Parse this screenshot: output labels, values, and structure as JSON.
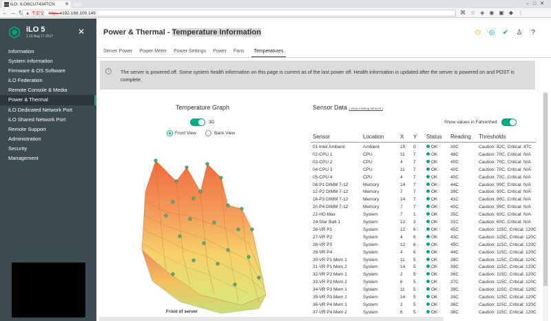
{
  "browser": {
    "tab_title": "iLO: ILO6CU74347CN",
    "tab_icon": "iLO",
    "url_warning": "不安全",
    "url_scheme": "https://",
    "url_host": "192.168.100.149"
  },
  "sidebar": {
    "product": "iLO 5",
    "firmware": "1.15 Aug 17 2017",
    "items": [
      {
        "label": "Information"
      },
      {
        "label": "System Information"
      },
      {
        "label": "Firmware & OS Software"
      },
      {
        "label": "iLO Federation"
      },
      {
        "label": "Remote Console & Media"
      },
      {
        "label": "Power & Thermal"
      },
      {
        "label": "iLO Dedicated Network Port"
      },
      {
        "label": "iLO Shared Network Port"
      },
      {
        "label": "Remote Support"
      },
      {
        "label": "Administration"
      },
      {
        "label": "Security"
      },
      {
        "label": "Management"
      }
    ],
    "active_index": 5
  },
  "header": {
    "section": "Power & Thermal",
    "separator": " - ",
    "page": "Temperature Information"
  },
  "tabs": [
    "Server Power",
    "Power Meter",
    "Power Settings",
    "Power",
    "Fans",
    "Temperatures"
  ],
  "selected_tab": 5,
  "alert": {
    "message": "The server is powered off. Some system health information on this page is current as of the last power off. Health information is updated after the server is powered on and POST is complete."
  },
  "graph": {
    "title": "Temperature Graph",
    "toggle_3d_label": "3D",
    "front_view": "Front View",
    "back_view": "Back View",
    "front_label": "Front of server"
  },
  "sensor_data": {
    "title": "Sensor Data",
    "show_missing": "( show missing sensors )",
    "fahrenheit_label": "Show values in Fahrenheit",
    "columns": {
      "sensor": "Sensor",
      "location": "Location",
      "x": "X",
      "y": "Y",
      "status": "Status",
      "reading": "Reading",
      "thresholds": "Thresholds"
    },
    "rows": [
      {
        "sensor": "01-Inlet Ambient",
        "location": "Ambient",
        "x": "15",
        "y": "0",
        "status": "OK",
        "reading": "30C",
        "thresholds": "Caution: 42C, Critical: 47C"
      },
      {
        "sensor": "02-CPU 1",
        "location": "CPU",
        "x": "11",
        "y": "7",
        "status": "OK",
        "reading": "48C",
        "thresholds": "Caution: 70C, Critical: N/A"
      },
      {
        "sensor": "03-CPU 2",
        "location": "CPU",
        "x": "4",
        "y": "7",
        "status": "OK",
        "reading": "40C",
        "thresholds": "Caution: 70C, Critical: N/A"
      },
      {
        "sensor": "04-CPU 3",
        "location": "CPU",
        "x": "11",
        "y": "7",
        "status": "OK",
        "reading": "40C",
        "thresholds": "Caution: 70C, Critical: N/A"
      },
      {
        "sensor": "05-CPU 4",
        "location": "CPU",
        "x": "4",
        "y": "7",
        "status": "OK",
        "reading": "40C",
        "thresholds": "Caution: 70C, Critical: N/A"
      },
      {
        "sensor": "08-P1 DIMM 7-12",
        "location": "Memory",
        "x": "14",
        "y": "7",
        "status": "OK",
        "reading": "44C",
        "thresholds": "Caution: 90C, Critical: N/A"
      },
      {
        "sensor": "12-P2 DIMM 7-12",
        "location": "Memory",
        "x": "7",
        "y": "7",
        "status": "OK",
        "reading": "39C",
        "thresholds": "Caution: 90C, Critical: N/A"
      },
      {
        "sensor": "16-P3 DIMM 7-12",
        "location": "Memory",
        "x": "14",
        "y": "7",
        "status": "OK",
        "reading": "41C",
        "thresholds": "Caution: 90C, Critical: N/A"
      },
      {
        "sensor": "20-P4 DIMM 7-12",
        "location": "Memory",
        "x": "7",
        "y": "7",
        "status": "OK",
        "reading": "40C",
        "thresholds": "Caution: 90C, Critical: N/A"
      },
      {
        "sensor": "22-HD Max",
        "location": "System",
        "x": "7",
        "y": "1",
        "status": "OK",
        "reading": "35C",
        "thresholds": "Caution: 60C, Critical: N/A"
      },
      {
        "sensor": "24-Stor Batt 1",
        "location": "System",
        "x": "12",
        "y": "3",
        "status": "OK",
        "reading": "31C",
        "thresholds": "Caution: 60C, Critical: N/A"
      },
      {
        "sensor": "26-VR P1",
        "location": "System",
        "x": "12",
        "y": "6",
        "status": "OK",
        "reading": "45C",
        "thresholds": "Caution: 115C, Critical: 120C"
      },
      {
        "sensor": "27-VR P2",
        "location": "System",
        "x": "4",
        "y": "6",
        "status": "OK",
        "reading": "43C",
        "thresholds": "Caution: 115C, Critical: 120C"
      },
      {
        "sensor": "28-VR P3",
        "location": "System",
        "x": "12",
        "y": "6",
        "status": "OK",
        "reading": "45C",
        "thresholds": "Caution: 115C, Critical: 120C"
      },
      {
        "sensor": "29-VR P4",
        "location": "System",
        "x": "4",
        "y": "6",
        "status": "OK",
        "reading": "44C",
        "thresholds": "Caution: 115C, Critical: 120C"
      },
      {
        "sensor": "30-VR P1 Mem 1",
        "location": "System",
        "x": "11",
        "y": "5",
        "status": "OK",
        "reading": "38C",
        "thresholds": "Caution: 115C, Critical: 120C"
      },
      {
        "sensor": "31-VR P1 Mem 2",
        "location": "System",
        "x": "14",
        "y": "5",
        "status": "OK",
        "reading": "39C",
        "thresholds": "Caution: 115C, Critical: 120C"
      },
      {
        "sensor": "32-VR P2 Mem 1",
        "location": "System",
        "x": "2",
        "y": "5",
        "status": "OK",
        "reading": "36C",
        "thresholds": "Caution: 115C, Critical: 120C"
      },
      {
        "sensor": "33-VR P2 Mem 2",
        "location": "System",
        "x": "6",
        "y": "5",
        "status": "OK",
        "reading": "37C",
        "thresholds": "Caution: 115C, Critical: 120C"
      },
      {
        "sensor": "34-VR P3 Mem 1",
        "location": "System",
        "x": "11",
        "y": "5",
        "status": "OK",
        "reading": "39C",
        "thresholds": "Caution: 115C, Critical: 120C"
      },
      {
        "sensor": "35-VR P3 Mem 2",
        "location": "System",
        "x": "14",
        "y": "5",
        "status": "OK",
        "reading": "39C",
        "thresholds": "Caution: 115C, Critical: 120C"
      },
      {
        "sensor": "36-VR P4 Mem 1",
        "location": "System",
        "x": "2",
        "y": "5",
        "status": "OK",
        "reading": "36C",
        "thresholds": "Caution: 115C, Critical: 120C"
      },
      {
        "sensor": "37-VR P4 Mem 2",
        "location": "System",
        "x": "6",
        "y": "5",
        "status": "OK",
        "reading": "38C",
        "thresholds": "Caution: 115C, Critical: 120C"
      }
    ]
  },
  "colors": {
    "accent": "#01a982",
    "sidebar": "#3c4b52",
    "power_icon": "#f0a500"
  }
}
